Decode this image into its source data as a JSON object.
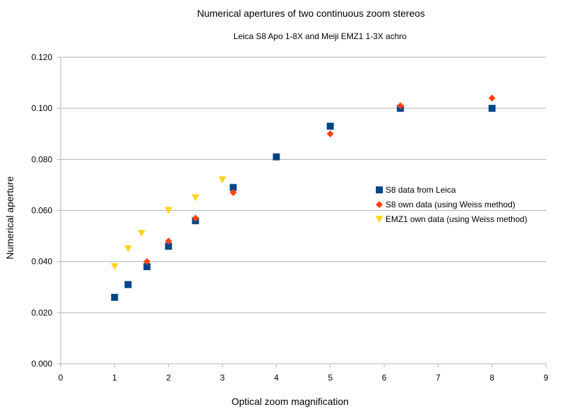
{
  "chart_data": {
    "type": "scatter",
    "title": "Numerical apertures of two continuous zoom stereos",
    "subtitle": "Leica S8 Apo 1-8X and Meiji EMZ1 1-3X achro",
    "xlabel": "Optical zoom magnification",
    "ylabel": "Numerical aperture",
    "xlim": [
      0,
      9
    ],
    "ylim": [
      0,
      0.12
    ],
    "x_ticks": [
      "0",
      "1",
      "2",
      "3",
      "4",
      "5",
      "6",
      "7",
      "8",
      "9"
    ],
    "y_ticks": [
      "0.000",
      "0.020",
      "0.040",
      "0.060",
      "0.080",
      "0.100",
      "0.120"
    ],
    "grid": "horizontal",
    "legend_position": "right",
    "series": [
      {
        "name": "S8 data from Leica",
        "marker": "square",
        "color": "#004586",
        "points": [
          [
            1,
            0.026
          ],
          [
            1.25,
            0.031
          ],
          [
            1.6,
            0.038
          ],
          [
            2,
            0.046
          ],
          [
            2.5,
            0.056
          ],
          [
            3.2,
            0.069
          ],
          [
            4,
            0.081
          ],
          [
            5,
            0.093
          ],
          [
            6.3,
            0.1
          ],
          [
            8,
            0.1
          ]
        ]
      },
      {
        "name": "S8 own data (using Weiss method)",
        "marker": "diamond",
        "color": "#ff420e",
        "points": [
          [
            1.6,
            0.04
          ],
          [
            2,
            0.048
          ],
          [
            2.5,
            0.057
          ],
          [
            3.2,
            0.067
          ],
          [
            5,
            0.09
          ],
          [
            6.3,
            0.101
          ],
          [
            8,
            0.104
          ]
        ]
      },
      {
        "name": "EMZ1 own data (using Weiss method)",
        "marker": "triangle-down",
        "color": "#ffd320",
        "points": [
          [
            1,
            0.038
          ],
          [
            1.25,
            0.045
          ],
          [
            1.5,
            0.051
          ],
          [
            2,
            0.06
          ],
          [
            2.5,
            0.065
          ],
          [
            3,
            0.072
          ]
        ]
      }
    ]
  }
}
